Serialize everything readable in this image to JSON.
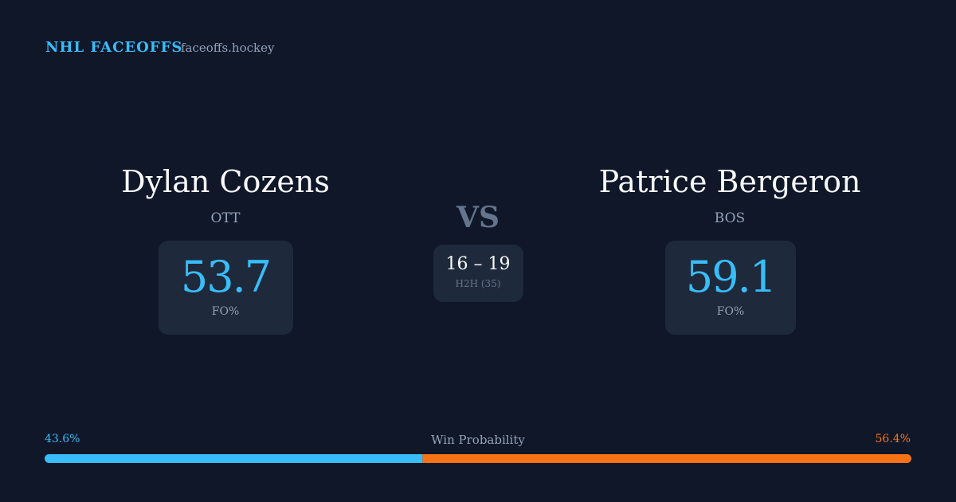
{
  "header": {
    "title": "NHL FACEOFFS",
    "site": "faceoffs.hockey"
  },
  "players": [
    {
      "name": "Dylan Cozens",
      "team": "OTT",
      "stat": "53.7",
      "stat_label": "FO%"
    },
    {
      "name": "Patrice Bergeron",
      "team": "BOS",
      "stat": "59.1",
      "stat_label": "FO%"
    }
  ],
  "versus": "VS",
  "h2h": {
    "score": "16 – 19",
    "label": "H2H (35)"
  },
  "win_probability": {
    "title": "Win Probability",
    "values": [
      {
        "value": 43.6,
        "label": "43.6%"
      },
      {
        "value": 56.4,
        "label": "56.4%"
      }
    ],
    "colors": [
      "#38bdf8",
      "#f97316"
    ]
  }
}
